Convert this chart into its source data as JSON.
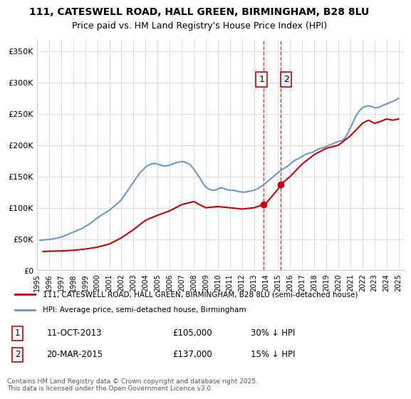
{
  "title_line1": "111, CATESWELL ROAD, HALL GREEN, BIRMINGHAM, B28 8LU",
  "title_line2": "Price paid vs. HM Land Registry's House Price Index (HPI)",
  "ylabel": "",
  "xlabel": "",
  "yticks": [
    0,
    50000,
    100000,
    150000,
    200000,
    250000,
    300000,
    350000
  ],
  "ytick_labels": [
    "£0",
    "£50K",
    "£100K",
    "£150K",
    "£200K",
    "£250K",
    "£300K",
    "£350K"
  ],
  "ylim": [
    0,
    370000
  ],
  "xlim_start": 1995.0,
  "xlim_end": 2025.5,
  "transaction1_date": 2013.78,
  "transaction1_price": 105000,
  "transaction1_label": "1",
  "transaction2_date": 2015.22,
  "transaction2_price": 137000,
  "transaction2_label": "2",
  "red_line_color": "#cc0000",
  "blue_line_color": "#6699cc",
  "vline_color": "#cc0000",
  "legend_line1": "111, CATESWELL ROAD, HALL GREEN, BIRMINGHAM, B28 8LU (semi-detached house)",
  "legend_line2": "HPI: Average price, semi-detached house, Birmingham",
  "footnote": "Contains HM Land Registry data © Crown copyright and database right 2025.\nThis data is licensed under the Open Government Licence v3.0.",
  "background_color": "#ffffff",
  "grid_color": "#dddddd",
  "hpi_data": {
    "years": [
      1995.25,
      1995.5,
      1995.75,
      1996.0,
      1996.25,
      1996.5,
      1996.75,
      1997.0,
      1997.25,
      1997.5,
      1997.75,
      1998.0,
      1998.25,
      1998.5,
      1998.75,
      1999.0,
      1999.25,
      1999.5,
      1999.75,
      2000.0,
      2000.25,
      2000.5,
      2000.75,
      2001.0,
      2001.25,
      2001.5,
      2001.75,
      2002.0,
      2002.25,
      2002.5,
      2002.75,
      2003.0,
      2003.25,
      2003.5,
      2003.75,
      2004.0,
      2004.25,
      2004.5,
      2004.75,
      2005.0,
      2005.25,
      2005.5,
      2005.75,
      2006.0,
      2006.25,
      2006.5,
      2006.75,
      2007.0,
      2007.25,
      2007.5,
      2007.75,
      2008.0,
      2008.25,
      2008.5,
      2008.75,
      2009.0,
      2009.25,
      2009.5,
      2009.75,
      2010.0,
      2010.25,
      2010.5,
      2010.75,
      2011.0,
      2011.25,
      2011.5,
      2011.75,
      2012.0,
      2012.25,
      2012.5,
      2012.75,
      2013.0,
      2013.25,
      2013.5,
      2013.75,
      2014.0,
      2014.25,
      2014.5,
      2014.75,
      2015.0,
      2015.25,
      2015.5,
      2015.75,
      2016.0,
      2016.25,
      2016.5,
      2016.75,
      2017.0,
      2017.25,
      2017.5,
      2017.75,
      2018.0,
      2018.25,
      2018.5,
      2018.75,
      2019.0,
      2019.25,
      2019.5,
      2019.75,
      2020.0,
      2020.25,
      2020.5,
      2020.75,
      2021.0,
      2021.25,
      2021.5,
      2021.75,
      2022.0,
      2022.25,
      2022.5,
      2022.75,
      2023.0,
      2023.25,
      2023.5,
      2023.75,
      2024.0,
      2024.25,
      2024.5,
      2024.75,
      2025.0
    ],
    "values": [
      48000,
      48500,
      49000,
      49500,
      50000,
      51000,
      52000,
      53000,
      55000,
      57000,
      59000,
      61000,
      63000,
      65000,
      67000,
      70000,
      73000,
      76000,
      80000,
      84000,
      87000,
      90000,
      93000,
      96000,
      100000,
      104000,
      108000,
      113000,
      120000,
      127000,
      134000,
      141000,
      148000,
      155000,
      160000,
      165000,
      168000,
      170000,
      171000,
      170000,
      168000,
      167000,
      167000,
      168000,
      170000,
      172000,
      173000,
      174000,
      173000,
      171000,
      168000,
      162000,
      155000,
      148000,
      140000,
      133000,
      130000,
      128000,
      128000,
      130000,
      132000,
      131000,
      129000,
      128000,
      128000,
      127000,
      126000,
      125000,
      125000,
      126000,
      127000,
      128000,
      130000,
      133000,
      136000,
      140000,
      144000,
      148000,
      152000,
      156000,
      160000,
      163000,
      166000,
      170000,
      174000,
      177000,
      179000,
      182000,
      185000,
      187000,
      188000,
      190000,
      193000,
      195000,
      196000,
      198000,
      200000,
      202000,
      204000,
      206000,
      207000,
      210000,
      218000,
      228000,
      238000,
      248000,
      255000,
      260000,
      262000,
      263000,
      262000,
      260000,
      260000,
      262000,
      264000,
      266000,
      268000,
      270000,
      272000,
      275000
    ]
  },
  "price_paid_data": {
    "years": [
      1995.5,
      1996.0,
      1997.0,
      1998.0,
      1999.0,
      2000.0,
      2001.0,
      2002.0,
      2003.0,
      2004.0,
      2005.0,
      2006.0,
      2007.0,
      2008.0,
      2009.0,
      2010.0,
      2011.0,
      2012.0,
      2013.0,
      2013.78,
      2014.0,
      2015.0,
      2015.22,
      2016.0,
      2017.0,
      2018.0,
      2019.0,
      2020.0,
      2021.0,
      2022.0,
      2022.5,
      2023.0,
      2023.5,
      2024.0,
      2024.5,
      2025.0
    ],
    "values": [
      30000,
      30500,
      31000,
      32000,
      34000,
      37000,
      42000,
      52000,
      65000,
      80000,
      88000,
      95000,
      105000,
      110000,
      100000,
      102000,
      100000,
      98000,
      100000,
      105000,
      107000,
      130000,
      137000,
      150000,
      170000,
      185000,
      195000,
      200000,
      215000,
      235000,
      240000,
      235000,
      238000,
      242000,
      240000,
      242000
    ]
  }
}
